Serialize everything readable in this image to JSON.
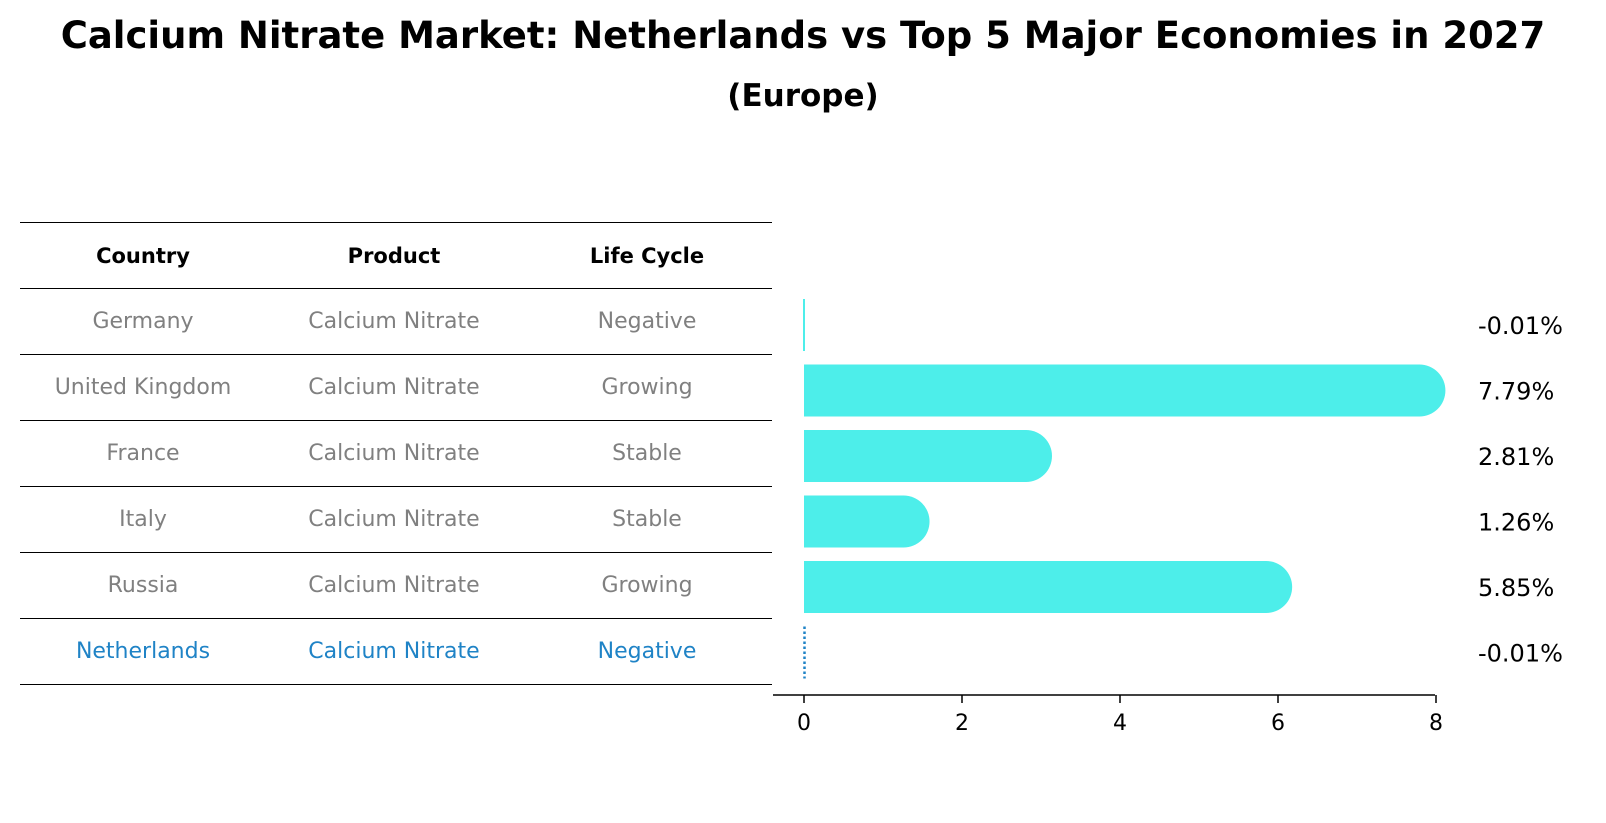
{
  "header": {
    "title": "Calcium Nitrate Market: Netherlands vs Top 5 Major Economies in 2027",
    "subtitle": "(Europe)"
  },
  "table": {
    "columns": [
      "Country",
      "Product",
      "Life Cycle"
    ],
    "rows": [
      {
        "country": "Germany",
        "product": "Calcium Nitrate",
        "life_cycle": "Negative"
      },
      {
        "country": "United Kingdom",
        "product": "Calcium Nitrate",
        "life_cycle": "Growing"
      },
      {
        "country": "France",
        "product": "Calcium Nitrate",
        "life_cycle": "Stable"
      },
      {
        "country": "Italy",
        "product": "Calcium Nitrate",
        "life_cycle": "Stable"
      },
      {
        "country": "Russia",
        "product": "Calcium Nitrate",
        "life_cycle": "Growing"
      },
      {
        "country": "Netherlands",
        "product": "Calcium Nitrate",
        "life_cycle": "Negative"
      }
    ]
  },
  "colors": {
    "bar": "#4deeea",
    "highlight": "#1f83c6",
    "muted_text": "#808080"
  },
  "chart_data": {
    "type": "bar",
    "orientation": "horizontal",
    "categories": [
      "Germany",
      "United Kingdom",
      "France",
      "Italy",
      "Russia",
      "Netherlands"
    ],
    "values": [
      -0.01,
      7.79,
      2.81,
      1.26,
      5.85,
      -0.01
    ],
    "value_labels": [
      "-0.01%",
      "7.79%",
      "2.81%",
      "1.26%",
      "5.85%",
      "-0.01%"
    ],
    "highlight_category": "Netherlands",
    "xticks": [
      0,
      2,
      4,
      6,
      8
    ],
    "xlim": [
      -0.4,
      8.2
    ],
    "xlabel": "",
    "ylabel": "",
    "grid": false
  }
}
